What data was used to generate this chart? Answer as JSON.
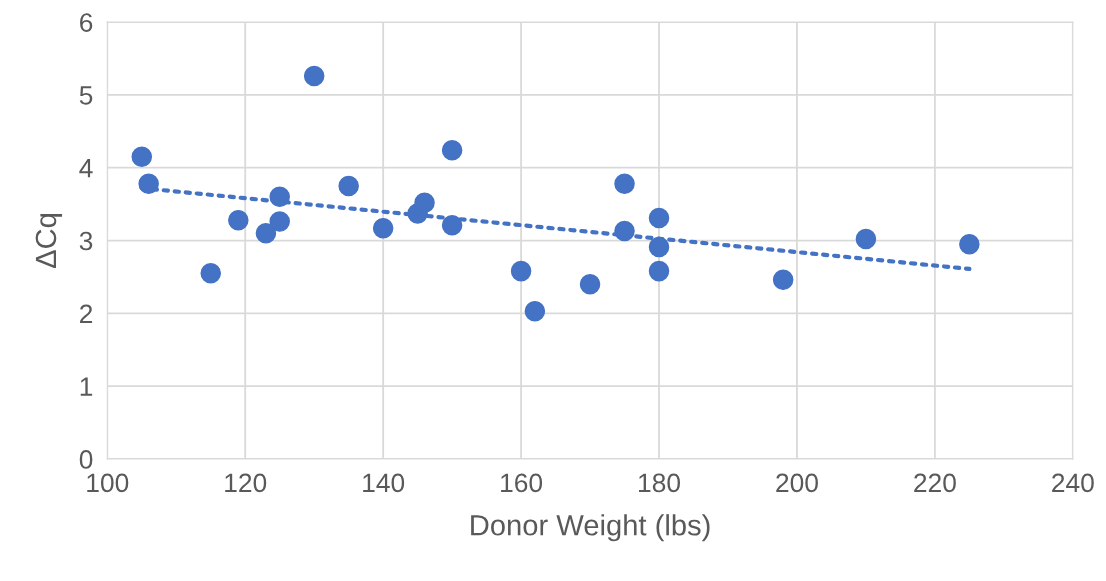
{
  "chart_data": {
    "type": "scatter",
    "xlabel": "Donor Weight (lbs)",
    "ylabel": "ΔCq",
    "xlim": [
      100,
      240
    ],
    "xticks": [
      100,
      120,
      140,
      160,
      180,
      200,
      220,
      240
    ],
    "ylim": [
      0,
      6
    ],
    "yticks": [
      0,
      1,
      2,
      3,
      4,
      5,
      6
    ],
    "grid": true,
    "legend": false,
    "series": [
      {
        "color": "#4472c4",
        "marker": "circle",
        "x": [
          105,
          106,
          115,
          119,
          123,
          125,
          125,
          130,
          135,
          140,
          145,
          146,
          150,
          150,
          160,
          162,
          170,
          175,
          175,
          180,
          180,
          180,
          198,
          210,
          225
        ],
        "values": [
          4.15,
          3.78,
          2.55,
          3.28,
          3.1,
          3.6,
          3.26,
          5.26,
          3.75,
          3.17,
          3.37,
          3.52,
          4.24,
          3.21,
          2.58,
          2.03,
          2.4,
          3.78,
          3.13,
          3.31,
          2.91,
          2.58,
          2.46,
          3.02,
          2.95
        ]
      },
      {
        "type": "line",
        "color": "#4472c4",
        "line_style": "dotted",
        "marker": "none",
        "x": [
          105,
          225
        ],
        "values": [
          3.72,
          2.61
        ]
      }
    ]
  }
}
